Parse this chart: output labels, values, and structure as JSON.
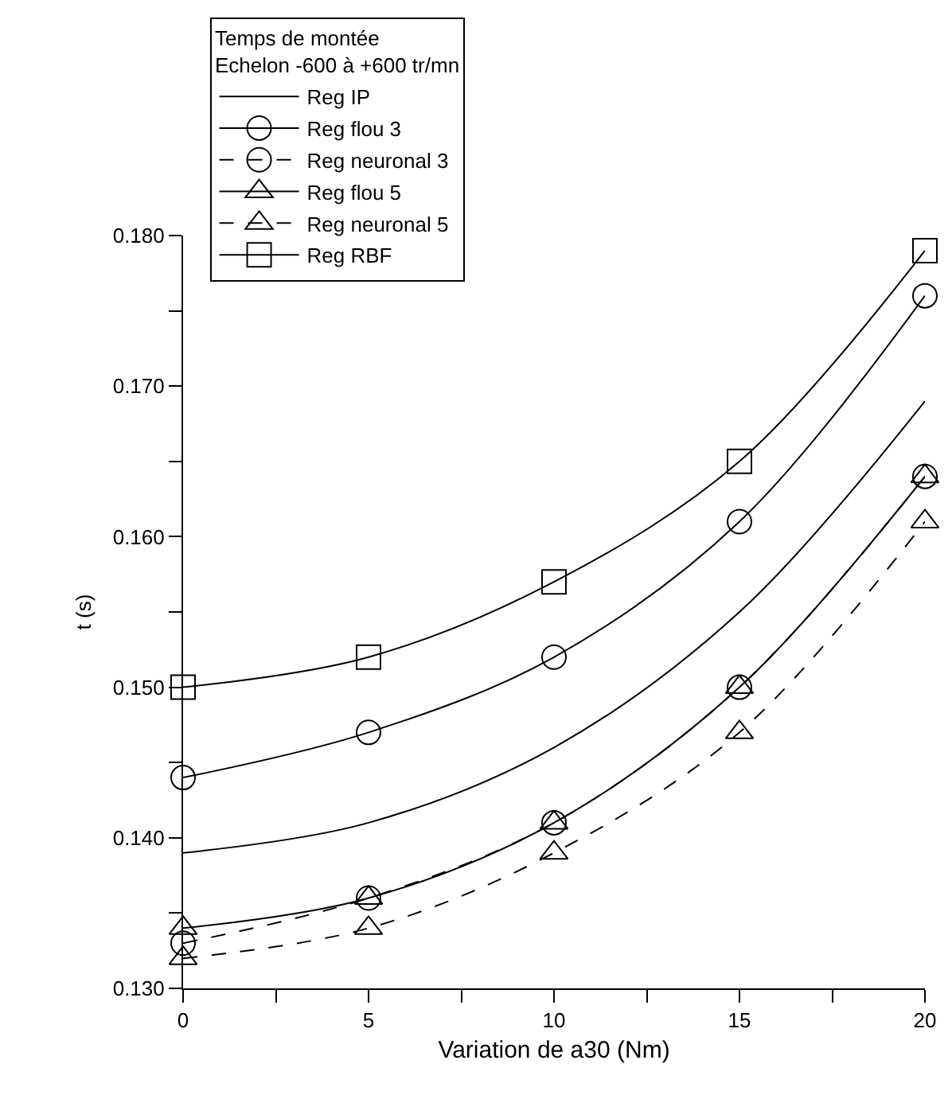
{
  "chart_data": {
    "type": "line",
    "legend_title": "Temps de montée\nEchelon -600 à +600 tr/mn",
    "xlabel": "Variation de a30 (Nm)",
    "ylabel": "t (s)",
    "x": [
      0,
      5,
      10,
      15,
      20
    ],
    "series": [
      {
        "name": "Reg IP",
        "color": "#000000",
        "values": [
          0.139,
          0.141,
          0.146,
          0.155,
          0.169
        ],
        "marker": "none",
        "line_style": "solid"
      },
      {
        "name": "Reg flou 3",
        "color": "#000000",
        "values": [
          0.144,
          0.147,
          0.152,
          0.161,
          0.176
        ],
        "marker": "circle",
        "line_style": "solid"
      },
      {
        "name": "Reg neuronal 3",
        "color": "#000000",
        "values": [
          0.133,
          0.136,
          0.141,
          0.15,
          0.164
        ],
        "marker": "circle",
        "line_style": "dashed"
      },
      {
        "name": "Reg flou 5",
        "color": "#000000",
        "values": [
          0.134,
          0.136,
          0.141,
          0.15,
          0.164
        ],
        "marker": "triangle",
        "line_style": "solid"
      },
      {
        "name": "Reg neuronal 5",
        "color": "#000000",
        "values": [
          0.132,
          0.134,
          0.139,
          0.147,
          0.161
        ],
        "marker": "triangle",
        "line_style": "dashed"
      },
      {
        "name": "Reg RBF",
        "color": "#000000",
        "values": [
          0.15,
          0.152,
          0.157,
          0.165,
          0.179
        ],
        "marker": "square",
        "line_style": "solid"
      }
    ],
    "xlim": [
      0,
      20
    ],
    "xticks": [
      0,
      {
        "value": 2.5,
        "label": null
      },
      5,
      {
        "value": 7.5,
        "label": null
      },
      10,
      {
        "value": 12.5,
        "label": null
      },
      15,
      {
        "value": 17.5,
        "label": null
      },
      20
    ],
    "ylim": [
      0.13,
      0.18
    ],
    "yticks": [
      {
        "value": 0.13,
        "label": "0.130"
      },
      {
        "value": 0.135,
        "label": null
      },
      {
        "value": 0.14,
        "label": "0.140"
      },
      {
        "value": 0.145,
        "label": null
      },
      {
        "value": 0.15,
        "label": "0.150"
      },
      {
        "value": 0.155,
        "label": null
      },
      {
        "value": 0.16,
        "label": "0.160"
      },
      {
        "value": 0.165,
        "label": null
      },
      {
        "value": 0.17,
        "label": "0.170"
      },
      {
        "value": 0.175,
        "label": null
      },
      {
        "value": 0.18,
        "label": "0.180"
      }
    ],
    "grid": false,
    "legend": "top left"
  }
}
